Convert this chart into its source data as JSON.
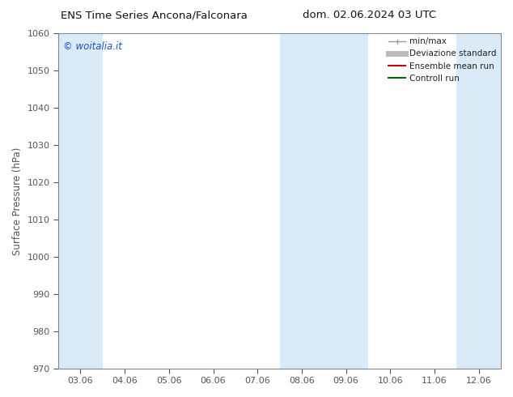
{
  "title_left": "ENS Time Series Ancona/Falconara",
  "title_right": "dom. 02.06.2024 03 UTC",
  "ylabel": "Surface Pressure (hPa)",
  "ylim": [
    970,
    1060
  ],
  "yticks": [
    970,
    980,
    990,
    1000,
    1010,
    1020,
    1030,
    1040,
    1050,
    1060
  ],
  "xlim": [
    0,
    10
  ],
  "xtick_labels": [
    "03.06",
    "04.06",
    "05.06",
    "06.06",
    "07.06",
    "08.06",
    "09.06",
    "10.06",
    "11.06",
    "12.06"
  ],
  "xtick_positions": [
    0.5,
    1.5,
    2.5,
    3.5,
    4.5,
    5.5,
    6.5,
    7.5,
    8.5,
    9.5
  ],
  "shaded_bands": [
    {
      "xmin": 0.0,
      "xmax": 1.0
    },
    {
      "xmin": 5.0,
      "xmax": 7.0
    },
    {
      "xmin": 9.0,
      "xmax": 10.0
    }
  ],
  "band_color": "#daeaf7",
  "watermark_text": "© woitalia.it",
  "watermark_color": "#1155cc",
  "legend_items": [
    {
      "label": "min/max",
      "color": "#999999",
      "lw": 1.0
    },
    {
      "label": "Deviazione standard",
      "color": "#bbbbbb",
      "lw": 5
    },
    {
      "label": "Ensemble mean run",
      "color": "#cc0000",
      "lw": 1.5
    },
    {
      "label": "Controll run",
      "color": "#006600",
      "lw": 1.5
    }
  ],
  "bg_color": "#ffffff",
  "spine_color": "#888888",
  "tick_color": "#555555",
  "title_fontsize": 9.5,
  "tick_fontsize": 8,
  "ylabel_fontsize": 8.5,
  "watermark_fontsize": 8.5,
  "legend_fontsize": 7.5
}
